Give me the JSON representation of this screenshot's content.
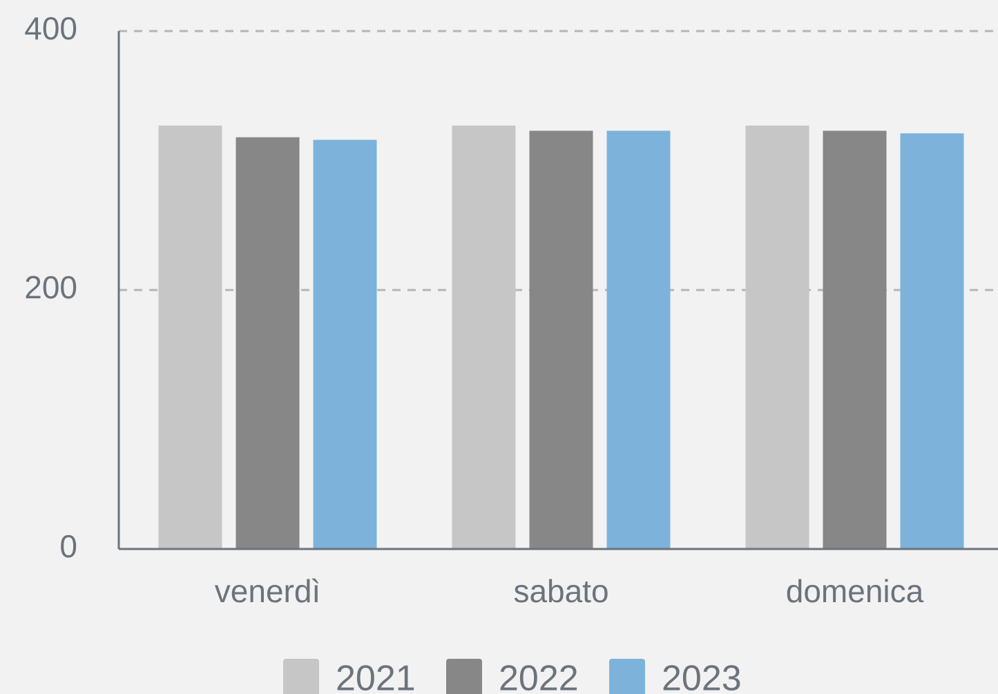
{
  "chart_data": {
    "type": "bar",
    "categories": [
      "venerdì",
      "sabato",
      "domenica"
    ],
    "series": [
      {
        "name": "2021",
        "color": "#c6c6c6",
        "values": [
          327,
          327,
          327
        ]
      },
      {
        "name": "2022",
        "color": "#878787",
        "values": [
          318,
          323,
          323
        ]
      },
      {
        "name": "2023",
        "color": "#7db3db",
        "values": [
          316,
          323,
          321
        ]
      }
    ],
    "ylim": [
      0,
      400
    ],
    "yticks": [
      0,
      200,
      400
    ],
    "grid": true,
    "legend": "bottom"
  }
}
